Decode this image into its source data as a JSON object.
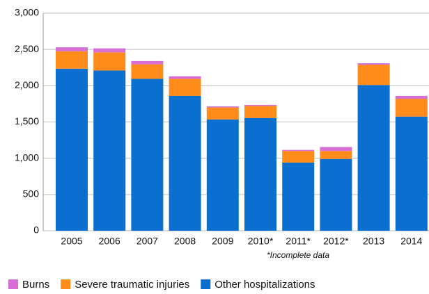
{
  "chart_data": {
    "type": "stacked_bar",
    "categories": [
      "2005",
      "2006",
      "2007",
      "2008",
      "2009",
      "2010*",
      "2011*",
      "2012*",
      "2013",
      "2014"
    ],
    "annotation": "*Incomplete data",
    "series": [
      {
        "name": "Burns",
        "color": "#d66ed6",
        "values": [
          55,
          55,
          45,
          35,
          15,
          15,
          15,
          55,
          20,
          40
        ]
      },
      {
        "name": "Severe traumatic injuries",
        "color": "#ff8c1a",
        "values": [
          240,
          250,
          200,
          235,
          165,
          165,
          160,
          110,
          280,
          245
        ]
      },
      {
        "name": "Other hospitalizations",
        "color": "#0b6fd0",
        "values": [
          2235,
          2210,
          2095,
          1860,
          1535,
          1555,
          940,
          990,
          2010,
          1575
        ]
      }
    ],
    "ylim": [
      0,
      3000
    ],
    "yticks": [
      0,
      500,
      {
        "value": 1000,
        "label": "1,000"
      },
      {
        "value": 1500,
        "label": "1,500"
      },
      {
        "value": 2000,
        "label": "2,000"
      },
      {
        "value": 2500,
        "label": "2,500"
      },
      {
        "value": 3000,
        "label": "3,000"
      }
    ],
    "grid": true,
    "legend": "bottom"
  }
}
